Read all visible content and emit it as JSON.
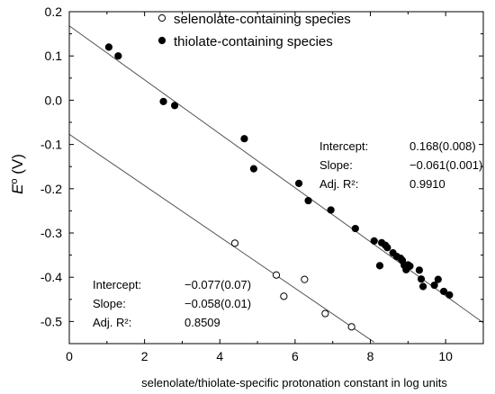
{
  "chart_data": {
    "type": "scatter",
    "xlabel": "selenolate/thiolate-specific protonation constant in log units",
    "ylabel_main": "E",
    "ylabel_sup": "o",
    "ylabel_unit": " (V)",
    "xlim": [
      0,
      11
    ],
    "ylim": [
      -0.55,
      0.2
    ],
    "x_ticks": [
      0,
      2,
      4,
      6,
      8,
      10
    ],
    "x_tick_labels": [
      "0",
      "2",
      "4",
      "6",
      "8",
      "10"
    ],
    "y_ticks": [
      0.2,
      0.1,
      0.0,
      -0.1,
      -0.2,
      -0.3,
      -0.4,
      -0.5
    ],
    "y_tick_labels": [
      "0.2",
      "0.1",
      "0.0",
      "-0.1",
      "-0.2",
      "-0.3",
      "-0.4",
      "-0.5"
    ],
    "legend_position": "top-right",
    "series": [
      {
        "name": "selenolate-containing species",
        "marker": "open-circle",
        "x": [
          4.4,
          5.5,
          5.7,
          6.25,
          6.8,
          7.5
        ],
        "y": [
          -0.323,
          -0.395,
          -0.443,
          -0.405,
          -0.482,
          -0.512
        ],
        "fit": {
          "intercept": -0.077,
          "slope": -0.058,
          "x_range": [
            0,
            8.1
          ],
          "labels": [
            "Intercept:",
            "Slope:",
            "Adj. R²:"
          ],
          "values": [
            "−0.077(0.07)",
            "−0.058(0.01)",
            "0.8509"
          ]
        }
      },
      {
        "name": "thiolate-containing species",
        "marker": "filled-circle",
        "x": [
          1.05,
          1.3,
          2.5,
          2.8,
          4.65,
          4.9,
          6.1,
          6.35,
          6.95,
          7.6,
          8.1,
          8.25,
          8.3,
          8.4,
          8.45,
          8.6,
          8.7,
          8.8,
          8.85,
          8.9,
          8.95,
          9.0,
          9.05,
          9.3,
          9.35,
          9.4,
          9.7,
          9.8,
          9.95,
          10.1
        ],
        "y": [
          0.12,
          0.1,
          -0.003,
          -0.012,
          -0.087,
          -0.155,
          -0.188,
          -0.227,
          -0.248,
          -0.29,
          -0.318,
          -0.374,
          -0.322,
          -0.328,
          -0.333,
          -0.345,
          -0.353,
          -0.357,
          -0.362,
          -0.373,
          -0.383,
          -0.372,
          -0.375,
          -0.384,
          -0.404,
          -0.421,
          -0.418,
          -0.405,
          -0.432,
          -0.44
        ],
        "fit": {
          "intercept": 0.168,
          "slope": -0.061,
          "x_range": [
            0,
            11
          ],
          "labels": [
            "Intercept:",
            "Slope:",
            "Adj. R²:"
          ],
          "values": [
            "0.168(0.008)",
            "−0.061(0.001)",
            "0.9910"
          ]
        }
      }
    ]
  }
}
